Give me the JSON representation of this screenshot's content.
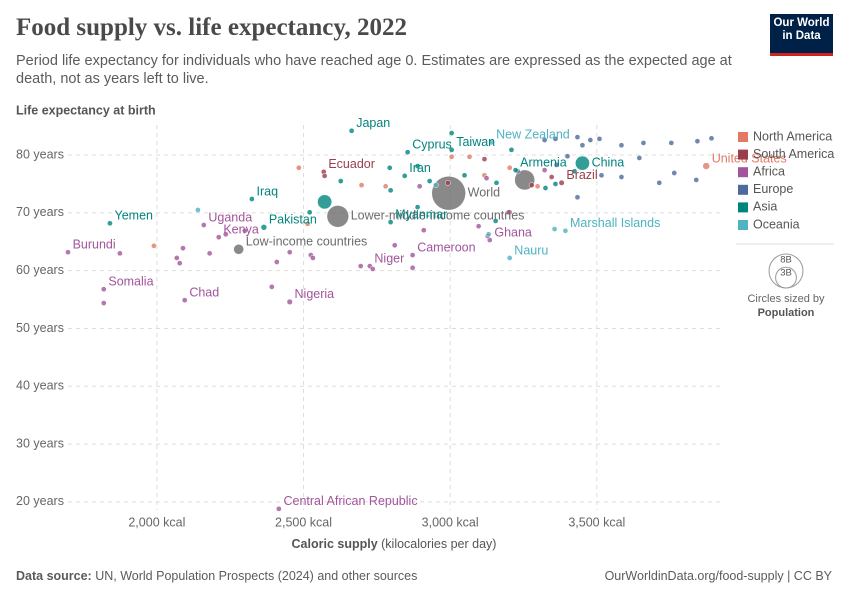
{
  "chart_data": {
    "type": "scatter",
    "title": "Food supply vs. life expectancy, 2022",
    "subtitle": "Period life expectancy for individuals who have reached age 0. Estimates are expressed as the expected age at death, not as years left to live.",
    "y_label": "Life expectancy at birth",
    "x_label": {
      "bold": "Caloric supply",
      "rest": "(kilocalories per day)"
    },
    "source": {
      "label": "Data source:",
      "text": "UN, World Population Prospects (2024) and other sources"
    },
    "credit": "OurWorldinData.org/food-supply | CC BY",
    "logo": "Our World in Data",
    "xlim": [
      1680,
      3920
    ],
    "ylim": [
      18.6,
      85.2
    ],
    "xticks": [
      {
        "value": 2000,
        "label": "2,000 kcal"
      },
      {
        "value": 2500,
        "label": "2,500 kcal"
      },
      {
        "value": 3000,
        "label": "3,000 kcal"
      },
      {
        "value": 3500,
        "label": "3,500 kcal"
      }
    ],
    "yticks": [
      {
        "value": 20,
        "label": "20 years"
      },
      {
        "value": 30,
        "label": "30 years"
      },
      {
        "value": 40,
        "label": "40 years"
      },
      {
        "value": 50,
        "label": "50 years"
      },
      {
        "value": 60,
        "label": "60 years"
      },
      {
        "value": 70,
        "label": "70 years"
      },
      {
        "value": 80,
        "label": "80 years"
      }
    ],
    "grid": true,
    "size_legend": {
      "title": "Circles sized by",
      "variable": "Population",
      "values": [
        {
          "value": 8,
          "label": "8B"
        },
        {
          "value": 3,
          "label": "3B"
        }
      ]
    },
    "aggregates": {
      "color": "#6b6b6b",
      "x": [
        2995,
        2617,
        2279,
        3254
      ],
      "y": [
        73.4,
        69.4,
        63.7,
        75.7
      ],
      "size": [
        8,
        3.3,
        0.7,
        2.8
      ],
      "labels": [
        "World",
        "Lower-middle-income countries",
        "Low-income countries",
        null
      ]
    },
    "series": [
      {
        "name": "North America",
        "color": "#e07a65",
        "x": [
          3873,
          2484,
          2698,
          2780,
          3005,
          3066,
          3117,
          2514,
          1990,
          3203,
          3298
        ],
        "y": [
          78.1,
          77.8,
          74.8,
          74.6,
          79.7,
          79.7,
          76.5,
          68.1,
          64.3,
          77.8,
          74.6
        ],
        "size": [
          0.335,
          0.01,
          0.13,
          0.01,
          0.01,
          0.04,
          0.01,
          0.01,
          0.011,
          0.005,
          0.01
        ],
        "labels": [
          "United States",
          null,
          null,
          null,
          null,
          null,
          null,
          null,
          null,
          null,
          null
        ]
      },
      {
        "name": "South America",
        "color": "#9a3e4c",
        "x": [
          2569,
          3380,
          2572,
          2992,
          3117,
          3203,
          3346,
          3278
        ],
        "y": [
          77.1,
          75.2,
          76.4,
          75.2,
          79.3,
          70.1,
          76.2,
          74.8
        ],
        "size": [
          0.018,
          0.21,
          0.012,
          0.034,
          0.02,
          0.028,
          0.046,
          0.052
        ],
        "labels": [
          "Ecuador",
          "Brazil",
          null,
          null,
          null,
          null,
          null,
          null
        ]
      },
      {
        "name": "Africa",
        "color": "#a2559c",
        "x": [
          1697,
          1819,
          2095,
          2453,
          2416,
          2160,
          2211,
          2726,
          2872,
          3135,
          1819,
          1874,
          2068,
          2078,
          2180,
          2235,
          2300,
          2392,
          2409,
          2453,
          2525,
          2532,
          2695,
          2736,
          2872,
          2811,
          2910,
          3128,
          3097,
          3199,
          3322,
          2896,
          3124,
          2089
        ],
        "y": [
          63.2,
          56.8,
          54.9,
          54.6,
          18.8,
          67.9,
          65.8,
          60.8,
          62.7,
          65.3,
          54.4,
          63.0,
          62.2,
          61.3,
          63.0,
          66.3,
          66.9,
          57.2,
          61.5,
          63.2,
          62.7,
          62.2,
          60.8,
          60.3,
          60.5,
          64.4,
          67.0,
          66.0,
          67.7,
          70.1,
          77.4,
          74.6,
          76.0,
          63.9
        ],
        "size": [
          0.013,
          0.018,
          0.018,
          0.22,
          0.005,
          0.047,
          0.055,
          0.026,
          0.028,
          0.033,
          0.003,
          0.012,
          0.03,
          0.1,
          0.014,
          0.065,
          0.017,
          0.014,
          0.009,
          0.005,
          0.034,
          0.02,
          0.018,
          0.022,
          0.008,
          0.03,
          0.01,
          0.019,
          0.005,
          0.037,
          0.013,
          0.046,
          0.11,
          0.02
        ],
        "labels": [
          "Burundi",
          "Somalia",
          "Chad",
          "Nigeria",
          "Central African Republic",
          "Uganda",
          "Kenya",
          "Niger",
          "Cameroon",
          "Ghana",
          null,
          null,
          null,
          null,
          null,
          null,
          null,
          null,
          null,
          null,
          null,
          null,
          null,
          null,
          null,
          null,
          null,
          null,
          null,
          null,
          null,
          null,
          null,
          null
        ]
      },
      {
        "name": "Europe",
        "color": "#4c6a9c",
        "x": [
          3322,
          3359,
          3434,
          3478,
          3509,
          3584,
          3659,
          3754,
          3843,
          3891,
          3516,
          3584,
          3713,
          3764,
          3839,
          3400,
          3451,
          3645,
          3434,
          3363,
          3230
        ],
        "y": [
          82.6,
          82.8,
          83.1,
          82.6,
          82.8,
          81.7,
          82.1,
          82.1,
          82.4,
          82.9,
          76.5,
          76.2,
          75.2,
          76.9,
          75.7,
          79.8,
          81.7,
          79.5,
          72.7,
          78.3,
          77.2
        ],
        "size": [
          0.047,
          0.06,
          0.009,
          0.068,
          0.084,
          0.011,
          0.017,
          0.009,
          0.005,
          0.01,
          0.038,
          0.019,
          0.007,
          0.01,
          0.003,
          0.065,
          0.002,
          0.011,
          0.14,
          0.01,
          0.006
        ],
        "labels": [
          null,
          null,
          null,
          null,
          null,
          null,
          null,
          null,
          null,
          null,
          null,
          null,
          null,
          null,
          null,
          null,
          null,
          null,
          null,
          null,
          null
        ]
      },
      {
        "name": "Asia",
        "color": "#00847e",
        "x": [
          1840,
          2324,
          2365,
          2664,
          2855,
          2845,
          3005,
          2797,
          3223,
          3451,
          2572,
          2521,
          2627,
          2794,
          2889,
          2889,
          3049,
          3158,
          3209,
          3325,
          3359,
          3424,
          2930,
          3005,
          2797,
          3155
        ],
        "y": [
          68.2,
          72.4,
          67.5,
          84.2,
          80.5,
          76.4,
          80.9,
          68.4,
          77.4,
          78.6,
          71.9,
          70.1,
          75.5,
          77.8,
          71.0,
          78.1,
          76.5,
          75.2,
          80.9,
          74.3,
          75.0,
          77.2,
          75.5,
          83.8,
          73.9,
          68.6
        ],
        "size": [
          0.034,
          0.045,
          0.24,
          0.124,
          0.001,
          0.09,
          0.023,
          0.054,
          0.003,
          1.42,
          1.43,
          0.04,
          0.17,
          0.02,
          0.03,
          0.1,
          0.07,
          0.085,
          0.05,
          0.012,
          0.036,
          0.005,
          0.035,
          0.052,
          0.01,
          0.036
        ],
        "labels": [
          "Yemen",
          "Iraq",
          "Pakistan",
          "Japan",
          "Cyprus",
          "Iran",
          "Taiwan",
          "Myanmar",
          "Armenia",
          "China",
          null,
          null,
          null,
          null,
          null,
          null,
          null,
          null,
          null,
          null,
          null,
          null,
          null,
          null,
          null,
          null
        ]
      },
      {
        "name": "Oceania",
        "color": "#4fb3c1",
        "x": [
          3141,
          3393,
          3203,
          2140,
          3356,
          2951,
          3131
        ],
        "y": [
          82.2,
          66.9,
          62.2,
          70.5,
          67.2,
          74.8,
          66.3
        ],
        "size": [
          0.005,
          4e-05,
          1e-05,
          0.01,
          0.0001,
          0.0009,
          0.0001
        ],
        "labels": [
          "New Zealand",
          "Marshall Islands",
          "Nauru",
          null,
          null,
          null,
          null
        ]
      }
    ]
  }
}
